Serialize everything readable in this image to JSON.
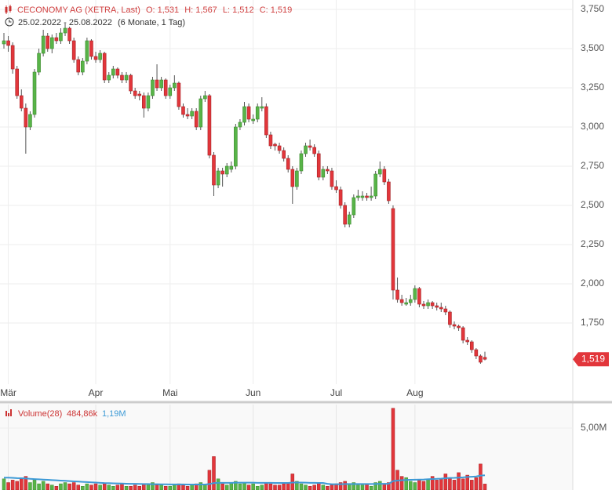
{
  "chart_data": [
    {
      "type": "candlestick",
      "title": "CECONOMY AG (XETRA, Last)",
      "ohlc_labels": [
        "O: 1,531",
        "H: 1,567",
        "L: 1,512",
        "C: 1,519"
      ],
      "date_range": "25.02.2022 - 25.08.2022",
      "period": "(6 Monate, 1 Tag)",
      "categories": [
        null,
        "Mär",
        null,
        null,
        null,
        null,
        null,
        null,
        null,
        null,
        null,
        null,
        null,
        null,
        null,
        null,
        null,
        null,
        null,
        null,
        null,
        "Apr",
        null,
        null,
        null,
        null,
        null,
        null,
        null,
        null,
        null,
        null,
        null,
        null,
        null,
        null,
        null,
        null,
        "Mai",
        null,
        null,
        null,
        null,
        null,
        null,
        null,
        null,
        null,
        null,
        null,
        null,
        null,
        null,
        null,
        null,
        null,
        null,
        "Jun",
        null,
        null,
        null,
        null,
        null,
        null,
        null,
        null,
        null,
        null,
        null,
        null,
        null,
        null,
        null,
        null,
        null,
        null,
        "Jul",
        null,
        null,
        null,
        null,
        null,
        null,
        null,
        null,
        null,
        null,
        null,
        null,
        null,
        null,
        null,
        null,
        null,
        "Aug",
        null,
        null,
        null,
        null,
        null,
        null,
        null,
        null,
        null,
        null,
        null,
        null,
        null,
        null,
        null,
        null
      ],
      "ohlc": [
        [
          3.53,
          3.6,
          3.5,
          3.55
        ],
        [
          3.55,
          3.58,
          3.48,
          3.52
        ],
        [
          3.52,
          3.54,
          3.34,
          3.37
        ],
        [
          3.37,
          3.39,
          3.18,
          3.2
        ],
        [
          3.2,
          3.24,
          3.1,
          3.12
        ],
        [
          3.12,
          3.15,
          2.83,
          3.0
        ],
        [
          3.0,
          3.1,
          2.98,
          3.08
        ],
        [
          3.08,
          3.37,
          3.06,
          3.35
        ],
        [
          3.35,
          3.5,
          3.33,
          3.47
        ],
        [
          3.47,
          3.62,
          3.45,
          3.58
        ],
        [
          3.58,
          3.6,
          3.48,
          3.5
        ],
        [
          3.5,
          3.59,
          3.47,
          3.57
        ],
        [
          3.57,
          3.6,
          3.53,
          3.55
        ],
        [
          3.55,
          3.63,
          3.53,
          3.6
        ],
        [
          3.6,
          3.66,
          3.58,
          3.63
        ],
        [
          3.63,
          3.64,
          3.53,
          3.55
        ],
        [
          3.55,
          3.57,
          3.41,
          3.43
        ],
        [
          3.43,
          3.45,
          3.33,
          3.35
        ],
        [
          3.35,
          3.44,
          3.33,
          3.42
        ],
        [
          3.42,
          3.57,
          3.4,
          3.55
        ],
        [
          3.55,
          3.56,
          3.43,
          3.45
        ],
        [
          3.45,
          3.48,
          3.41,
          3.43
        ],
        [
          3.43,
          3.49,
          3.41,
          3.47
        ],
        [
          3.47,
          3.48,
          3.28,
          3.3
        ],
        [
          3.3,
          3.35,
          3.28,
          3.33
        ],
        [
          3.33,
          3.39,
          3.31,
          3.37
        ],
        [
          3.37,
          3.38,
          3.31,
          3.33
        ],
        [
          3.33,
          3.35,
          3.28,
          3.3
        ],
        [
          3.3,
          3.35,
          3.28,
          3.33
        ],
        [
          3.33,
          3.34,
          3.21,
          3.23
        ],
        [
          3.23,
          3.25,
          3.18,
          3.2
        ],
        [
          3.21,
          3.23,
          3.17,
          3.2
        ],
        [
          3.2,
          3.22,
          3.06,
          3.12
        ],
        [
          3.12,
          3.22,
          3.1,
          3.2
        ],
        [
          3.2,
          3.32,
          3.18,
          3.3
        ],
        [
          3.3,
          3.4,
          3.23,
          3.25
        ],
        [
          3.25,
          3.32,
          3.23,
          3.3
        ],
        [
          3.3,
          3.31,
          3.18,
          3.2
        ],
        [
          3.2,
          3.27,
          3.18,
          3.25
        ],
        [
          3.25,
          3.33,
          3.23,
          3.28
        ],
        [
          3.28,
          3.29,
          3.11,
          3.13
        ],
        [
          3.13,
          3.15,
          3.06,
          3.08
        ],
        [
          3.08,
          3.12,
          3.05,
          3.07
        ],
        [
          3.07,
          3.12,
          3.05,
          3.1
        ],
        [
          3.1,
          3.12,
          2.98,
          3.0
        ],
        [
          3.0,
          3.2,
          2.98,
          3.18
        ],
        [
          3.18,
          3.23,
          3.16,
          3.2
        ],
        [
          3.2,
          3.21,
          2.8,
          2.82
        ],
        [
          2.82,
          2.84,
          2.56,
          2.63
        ],
        [
          2.63,
          2.74,
          2.61,
          2.72
        ],
        [
          2.72,
          2.74,
          2.62,
          2.7
        ],
        [
          2.7,
          2.77,
          2.68,
          2.75
        ],
        [
          2.73,
          2.78,
          2.71,
          2.75
        ],
        [
          2.75,
          3.02,
          2.73,
          3.0
        ],
        [
          3.0,
          3.05,
          2.98,
          3.03
        ],
        [
          3.03,
          3.16,
          3.01,
          3.13
        ],
        [
          3.13,
          3.15,
          3.03,
          3.05
        ],
        [
          3.04,
          3.08,
          3.02,
          3.05
        ],
        [
          3.05,
          3.15,
          3.03,
          3.13
        ],
        [
          3.12,
          3.19,
          3.1,
          3.13
        ],
        [
          3.13,
          3.15,
          2.93,
          2.95
        ],
        [
          2.95,
          2.97,
          2.86,
          2.88
        ],
        [
          2.89,
          2.9,
          2.85,
          2.88
        ],
        [
          2.88,
          2.9,
          2.83,
          2.85
        ],
        [
          2.85,
          2.87,
          2.78,
          2.8
        ],
        [
          2.8,
          2.82,
          2.71,
          2.73
        ],
        [
          2.73,
          2.75,
          2.51,
          2.62
        ],
        [
          2.62,
          2.74,
          2.6,
          2.72
        ],
        [
          2.72,
          2.85,
          2.7,
          2.83
        ],
        [
          2.83,
          2.9,
          2.81,
          2.88
        ],
        [
          2.88,
          2.92,
          2.85,
          2.87
        ],
        [
          2.87,
          2.89,
          2.81,
          2.83
        ],
        [
          2.83,
          2.85,
          2.66,
          2.68
        ],
        [
          2.68,
          2.75,
          2.66,
          2.73
        ],
        [
          2.73,
          2.75,
          2.7,
          2.72
        ],
        [
          2.72,
          2.74,
          2.6,
          2.62
        ],
        [
          2.62,
          2.66,
          2.58,
          2.6
        ],
        [
          2.6,
          2.62,
          2.48,
          2.5
        ],
        [
          2.5,
          2.52,
          2.36,
          2.38
        ],
        [
          2.38,
          2.46,
          2.36,
          2.44
        ],
        [
          2.44,
          2.57,
          2.42,
          2.55
        ],
        [
          2.55,
          2.6,
          2.53,
          2.56
        ],
        [
          2.55,
          2.59,
          2.53,
          2.56
        ],
        [
          2.56,
          2.58,
          2.53,
          2.55
        ],
        [
          2.55,
          2.62,
          2.53,
          2.56
        ],
        [
          2.56,
          2.72,
          2.54,
          2.7
        ],
        [
          2.7,
          2.78,
          2.68,
          2.73
        ],
        [
          2.73,
          2.75,
          2.63,
          2.65
        ],
        [
          2.65,
          2.67,
          2.51,
          2.53
        ],
        [
          2.48,
          2.5,
          1.9,
          1.96
        ],
        [
          1.96,
          2.04,
          1.88,
          1.9
        ],
        [
          1.9,
          1.93,
          1.86,
          1.88
        ],
        [
          1.87,
          1.91,
          1.86,
          1.88
        ],
        [
          1.88,
          1.93,
          1.86,
          1.9
        ],
        [
          1.9,
          1.99,
          1.88,
          1.97
        ],
        [
          1.97,
          1.98,
          1.85,
          1.87
        ],
        [
          1.87,
          1.89,
          1.84,
          1.86
        ],
        [
          1.86,
          1.9,
          1.84,
          1.88
        ],
        [
          1.88,
          1.89,
          1.84,
          1.86
        ],
        [
          1.86,
          1.88,
          1.83,
          1.85
        ],
        [
          1.85,
          1.88,
          1.82,
          1.84
        ],
        [
          1.84,
          1.86,
          1.8,
          1.82
        ],
        [
          1.82,
          1.83,
          1.72,
          1.74
        ],
        [
          1.74,
          1.76,
          1.71,
          1.73
        ],
        [
          1.73,
          1.74,
          1.7,
          1.72
        ],
        [
          1.72,
          1.73,
          1.62,
          1.64
        ],
        [
          1.64,
          1.66,
          1.61,
          1.63
        ],
        [
          1.63,
          1.64,
          1.56,
          1.58
        ],
        [
          1.58,
          1.59,
          1.52,
          1.54
        ],
        [
          1.54,
          1.55,
          1.49,
          1.5
        ],
        [
          1.531,
          1.567,
          1.512,
          1.519
        ]
      ],
      "last_label": "1,519",
      "up_color": "#58b448",
      "down_color": "#e2363b",
      "ylim": [
        1.36,
        3.81
      ],
      "yticks": [
        {
          "value": 1.75,
          "label": "1,750"
        },
        {
          "value": 2,
          "label": "2,000"
        },
        {
          "value": 2.25,
          "label": "2,250"
        },
        {
          "value": 2.5,
          "label": "2,500"
        },
        {
          "value": 2.75,
          "label": "2,750"
        },
        {
          "value": 3,
          "label": "3,000"
        },
        {
          "value": 3.25,
          "label": "3,250"
        },
        {
          "value": 3.5,
          "label": "3,500"
        },
        {
          "value": 3.75,
          "label": "3,750"
        }
      ],
      "grid": true
    },
    {
      "type": "volume",
      "title": "Volume(28)",
      "volume": [
        0.9,
        0.6,
        0.8,
        0.7,
        0.9,
        1.1,
        0.6,
        0.8,
        0.5,
        0.7,
        0.5,
        0.4,
        0.3,
        0.5,
        0.6,
        0.5,
        0.6,
        0.4,
        0.3,
        0.5,
        0.4,
        0.5,
        0.4,
        0.5,
        0.4,
        0.3,
        0.4,
        0.5,
        0.3,
        0.3,
        0.4,
        0.3,
        0.5,
        0.4,
        0.6,
        0.4,
        0.4,
        0.3,
        0.3,
        0.4,
        0.5,
        0.4,
        0.3,
        0.4,
        0.5,
        0.6,
        0.4,
        1.6,
        2.7,
        0.9,
        0.5,
        0.4,
        0.6,
        0.7,
        0.5,
        0.6,
        0.4,
        0.5,
        0.3,
        0.4,
        0.6,
        0.5,
        0.4,
        0.4,
        0.5,
        0.6,
        1.3,
        0.7,
        0.5,
        0.4,
        0.3,
        0.4,
        0.6,
        0.4,
        0.3,
        0.4,
        0.5,
        0.6,
        0.7,
        0.5,
        0.6,
        0.4,
        0.4,
        0.5,
        0.3,
        0.6,
        0.7,
        0.5,
        0.6,
        6.6,
        1.6,
        1.1,
        1.0,
        0.7,
        0.6,
        0.8,
        0.7,
        0.9,
        1.1,
        0.8,
        0.9,
        1.3,
        1.0,
        0.8,
        1.4,
        0.9,
        1.2,
        0.8,
        1.0,
        2.1,
        0.48486
      ],
      "volume_label": "484,86k",
      "average": [
        1.0,
        1.0,
        0.98,
        0.96,
        0.95,
        0.93,
        0.9,
        0.88,
        0.86,
        0.84,
        0.82,
        0.8,
        0.78,
        0.76,
        0.74,
        0.72,
        0.7,
        0.68,
        0.66,
        0.64,
        0.62,
        0.6,
        0.58,
        0.56,
        0.55,
        0.54,
        0.53,
        0.52,
        0.51,
        0.5,
        0.5,
        0.49,
        0.48,
        0.48,
        0.47,
        0.47,
        0.46,
        0.46,
        0.45,
        0.45,
        0.45,
        0.45,
        0.44,
        0.44,
        0.44,
        0.44,
        0.44,
        0.48,
        0.56,
        0.58,
        0.58,
        0.58,
        0.58,
        0.59,
        0.59,
        0.59,
        0.59,
        0.59,
        0.58,
        0.58,
        0.58,
        0.58,
        0.57,
        0.57,
        0.57,
        0.57,
        0.6,
        0.6,
        0.6,
        0.59,
        0.58,
        0.58,
        0.57,
        0.57,
        0.5,
        0.47,
        0.47,
        0.47,
        0.48,
        0.48,
        0.48,
        0.48,
        0.48,
        0.48,
        0.48,
        0.49,
        0.5,
        0.5,
        0.5,
        0.72,
        0.76,
        0.79,
        0.81,
        0.82,
        0.83,
        0.84,
        0.85,
        0.87,
        0.89,
        0.9,
        0.92,
        0.95,
        0.97,
        0.98,
        1.0,
        1.02,
        1.05,
        1.07,
        1.09,
        1.16,
        1.19
      ],
      "average_label": "1,19M",
      "average_color": "#3d9ad6",
      "ylim": [
        0,
        6.9
      ],
      "yticks": [
        {
          "value": 5,
          "label": "5,00M"
        }
      ]
    }
  ]
}
